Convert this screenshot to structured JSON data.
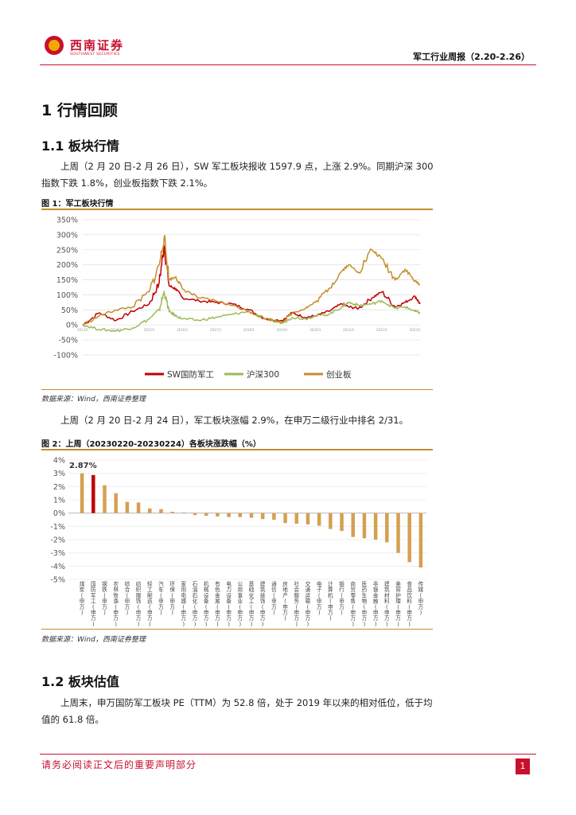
{
  "header": {
    "logo_text": "西南证券",
    "logo_sub": "SOUTHWEST SECURITIES",
    "report_title": "军工行业周报（2.20-2.26）"
  },
  "section1": {
    "title": "1 行情回顾"
  },
  "section1_1": {
    "title": "1.1 板块行情",
    "para1": "上周（2 月 20 日-2 月 26 日），SW 军工板块报收 1597.9 点，上涨 2.9%。同期沪深 300 指数下跌 1.8%，创业板指数下跌 2.1%。",
    "para2": "上周（2 月 20 日-2 月 24 日），军工板块涨幅 2.9%，在申万二级行业中排名 2/31。"
  },
  "figure1": {
    "title": "图 1：军工板块行情",
    "source": "数据来源：Wind，西南证券整理"
  },
  "figure2": {
    "title": "图 2：上周（20230220-20230224）各板块涨跌幅（%）",
    "source": "数据来源：Wind，西南证券整理"
  },
  "section1_2": {
    "title": "1.2 板块估值",
    "para1": "上周末，申万国防军工板块 PE（TTM）为 52.8 倍，处于 2019 年以来的相对低位，低于均值的 61.8 倍。"
  },
  "footer": {
    "disclaimer": "请务必阅读正文后的重要声明部分",
    "page": "1"
  },
  "chart_data": [
    {
      "type": "line",
      "title": "",
      "xlabel": "",
      "ylabel": "",
      "ylim": [
        -100,
        350
      ],
      "yticks": [
        "-100%",
        "-50%",
        "0%",
        "50%",
        "100%",
        "150%",
        "200%",
        "250%",
        "300%",
        "350%"
      ],
      "xticks": [
        "2013/1",
        "2014/1",
        "2015/1",
        "2016/1",
        "2017/1",
        "2018/1",
        "2019/1",
        "2020/1",
        "2021/1",
        "2022/1",
        "2023/1"
      ],
      "grid": true,
      "legend": "bottom",
      "x": [
        2013.0,
        2013.5,
        2014.0,
        2014.5,
        2015.0,
        2015.3,
        2015.45,
        2015.6,
        2015.8,
        2016.0,
        2016.5,
        2017.0,
        2017.5,
        2018.0,
        2018.5,
        2019.0,
        2019.3,
        2019.7,
        2020.0,
        2020.4,
        2020.8,
        2021.0,
        2021.3,
        2021.7,
        2022.0,
        2022.4,
        2022.7,
        2023.0,
        2023.15
      ],
      "series": [
        {
          "name": "SW国防军工",
          "color": "#c00000",
          "values": [
            0,
            40,
            15,
            45,
            70,
            140,
            265,
            130,
            120,
            90,
            80,
            75,
            70,
            50,
            20,
            15,
            40,
            25,
            30,
            45,
            70,
            60,
            55,
            90,
            110,
            60,
            75,
            95,
            70
          ]
        },
        {
          "name": "沪深300",
          "color": "#9bbb59",
          "values": [
            0,
            -15,
            -20,
            -10,
            20,
            50,
            110,
            45,
            30,
            20,
            15,
            25,
            35,
            45,
            20,
            5,
            25,
            20,
            30,
            35,
            60,
            75,
            65,
            70,
            80,
            55,
            60,
            45,
            40
          ]
        },
        {
          "name": "创业板",
          "color": "#c58d2c",
          "values": [
            0,
            30,
            50,
            60,
            110,
            200,
            290,
            150,
            160,
            120,
            90,
            80,
            65,
            45,
            20,
            10,
            40,
            55,
            75,
            120,
            180,
            200,
            175,
            250,
            220,
            150,
            185,
            145,
            135
          ]
        }
      ]
    },
    {
      "type": "bar",
      "title": "",
      "ylim": [
        -5,
        4
      ],
      "yticks": [
        "-5%",
        "-4%",
        "-3%",
        "-2%",
        "-1%",
        "0%",
        "1%",
        "2%",
        "3%",
        "4%"
      ],
      "highlight_label": "2.87%",
      "highlight_index": 1,
      "bar_color": "#d4a050",
      "highlight_color": "#c00000",
      "categories": [
        "煤炭(申万)",
        "国防军工(申万)",
        "钢铁(申万)",
        "农林牧渔(申万)",
        "综合(申万)",
        "纺织服饰(申万)",
        "轻工制造(申万)",
        "汽车(申万)",
        "环保(申万)",
        "家用电器(申万)",
        "石油石化(申万)",
        "机械设备(申万)",
        "有色金属(申万)",
        "电力设备(申万)",
        "公用事业(申万)",
        "基础化工(申万)",
        "建筑装饰(申万)",
        "通信(申万)",
        "房地产(申万)",
        "社会服务(申万)",
        "交通运输(申万)",
        "电子(申万)",
        "计算机(申万)",
        "银行(申万)",
        "商贸零售(申万)",
        "医药生物(申万)",
        "非银金融(申万)",
        "建筑材料(申万)",
        "美容护理(申万)",
        "食品饮料(申万)",
        "传媒(申万)"
      ],
      "values": [
        3.0,
        2.87,
        2.1,
        1.5,
        0.85,
        0.8,
        0.35,
        0.3,
        0.1,
        0.05,
        -0.15,
        -0.2,
        -0.25,
        -0.3,
        -0.3,
        -0.35,
        -0.45,
        -0.5,
        -0.75,
        -0.8,
        -0.85,
        -0.95,
        -1.2,
        -1.35,
        -1.8,
        -1.9,
        -2.0,
        -2.2,
        -3.0,
        -3.7,
        -4.1
      ]
    }
  ]
}
